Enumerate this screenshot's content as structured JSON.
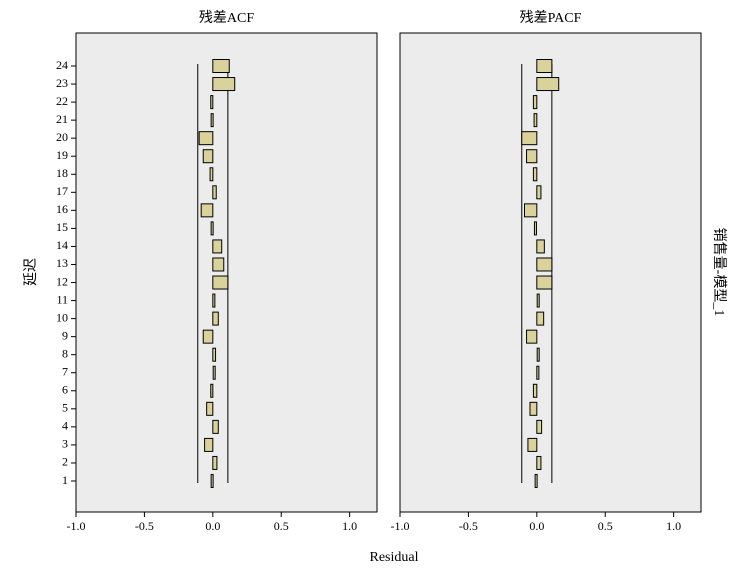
{
  "chart_data": [
    {
      "type": "bar",
      "orientation": "horizontal",
      "title": "残差ACF",
      "xlabel": "Residual",
      "ylabel": "延迟",
      "row_label": "销售量-模型_1",
      "xlim": [
        -1.0,
        1.2
      ],
      "x_ticks": [
        "-1.0",
        "-0.5",
        "0.0",
        "0.5",
        "1.0"
      ],
      "x_tick_values": [
        -1.0,
        -0.5,
        0.0,
        0.5,
        1.0
      ],
      "categories": [
        "1",
        "2",
        "3",
        "4",
        "5",
        "6",
        "7",
        "8",
        "9",
        "10",
        "11",
        "12",
        "13",
        "14",
        "15",
        "16",
        "17",
        "18",
        "19",
        "20",
        "21",
        "22",
        "23",
        "24"
      ],
      "values": [
        -0.005,
        0.03,
        -0.06,
        0.04,
        -0.045,
        -0.015,
        0.01,
        0.02,
        -0.07,
        0.04,
        0.015,
        0.11,
        0.08,
        0.065,
        -0.005,
        -0.085,
        0.025,
        -0.02,
        -0.07,
        -0.1,
        -0.005,
        -0.015,
        0.16,
        0.12
      ],
      "confidence_limits": [
        {
          "lower": -0.11,
          "upper": 0.11,
          "lag_from": 1,
          "lag_to": 24
        }
      ],
      "background": "#ececec",
      "bar_color": "#d9d29a",
      "grid": false
    },
    {
      "type": "bar",
      "orientation": "horizontal",
      "title": "残差PACF",
      "xlabel": "Residual",
      "ylabel": "延迟",
      "row_label": "销售量-模型_1",
      "xlim": [
        -1.0,
        1.2
      ],
      "x_ticks": [
        "-1.0",
        "-0.5",
        "0.0",
        "0.5",
        "1.0"
      ],
      "x_tick_values": [
        -1.0,
        -0.5,
        0.0,
        0.5,
        1.0
      ],
      "categories": [
        "1",
        "2",
        "3",
        "4",
        "5",
        "6",
        "7",
        "8",
        "9",
        "10",
        "11",
        "12",
        "13",
        "14",
        "15",
        "16",
        "17",
        "18",
        "19",
        "20",
        "21",
        "22",
        "23",
        "24"
      ],
      "values": [
        -0.005,
        0.03,
        -0.065,
        0.035,
        -0.05,
        -0.025,
        0.015,
        0.01,
        -0.075,
        0.05,
        0.01,
        0.11,
        0.11,
        0.055,
        -0.01,
        -0.09,
        0.03,
        -0.025,
        -0.075,
        -0.11,
        -0.02,
        -0.025,
        0.16,
        0.11
      ],
      "confidence_limits": [
        {
          "lower": -0.11,
          "upper": 0.11,
          "lag_from": 1,
          "lag_to": 24
        }
      ],
      "background": "#ececec",
      "bar_color": "#d9d29a",
      "grid": false
    }
  ]
}
